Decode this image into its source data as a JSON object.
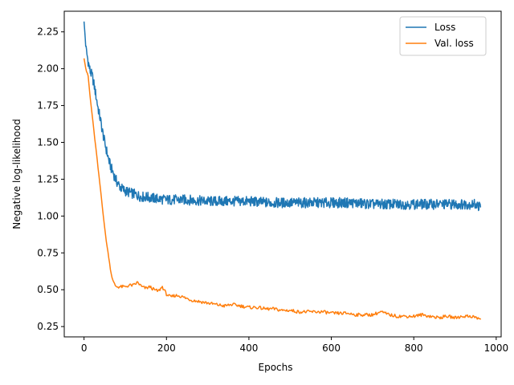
{
  "chart_data": {
    "type": "line",
    "title": "",
    "xlabel": "Epochs",
    "ylabel": "Negative log-likelihood",
    "xlim": [
      -48,
      1012
    ],
    "ylim": [
      0.18,
      2.39
    ],
    "xticks": [
      0,
      200,
      400,
      600,
      800,
      1000
    ],
    "xtick_labels": [
      "0",
      "200",
      "400",
      "600",
      "800",
      "1000"
    ],
    "yticks": [
      0.25,
      0.5,
      0.75,
      1.0,
      1.25,
      1.5,
      1.75,
      2.0,
      2.25
    ],
    "ytick_labels": [
      "0.25",
      "0.50",
      "0.75",
      "1.00",
      "1.25",
      "1.50",
      "1.75",
      "2.00",
      "2.25"
    ],
    "grid": false,
    "legend": {
      "position": "top-right"
    },
    "series": [
      {
        "name": "Loss",
        "color": "#1f77b4",
        "x": [
          0,
          5,
          10,
          15,
          20,
          25,
          30,
          35,
          40,
          45,
          50,
          55,
          60,
          65,
          70,
          75,
          80,
          85,
          90,
          95,
          100,
          110,
          120,
          130,
          140,
          150,
          170,
          200,
          250,
          300,
          350,
          400,
          450,
          500,
          550,
          600,
          650,
          700,
          750,
          800,
          850,
          900,
          950,
          963
        ],
        "values": [
          2.32,
          2.13,
          2.05,
          1.98,
          1.95,
          1.88,
          1.8,
          1.72,
          1.65,
          1.57,
          1.5,
          1.44,
          1.38,
          1.33,
          1.3,
          1.26,
          1.23,
          1.21,
          1.19,
          1.18,
          1.17,
          1.16,
          1.15,
          1.14,
          1.13,
          1.13,
          1.12,
          1.11,
          1.11,
          1.1,
          1.1,
          1.1,
          1.09,
          1.09,
          1.09,
          1.09,
          1.09,
          1.08,
          1.08,
          1.08,
          1.08,
          1.08,
          1.08,
          1.06
        ]
      },
      {
        "name": "Val. loss",
        "color": "#ff7f0e",
        "x": [
          0,
          5,
          10,
          15,
          20,
          25,
          30,
          35,
          40,
          45,
          50,
          55,
          60,
          65,
          70,
          75,
          80,
          90,
          100,
          110,
          120,
          130,
          140,
          150,
          160,
          170,
          180,
          190,
          200,
          210,
          220,
          230,
          240,
          260,
          280,
          300,
          320,
          340,
          360,
          380,
          400,
          420,
          440,
          460,
          480,
          500,
          520,
          540,
          560,
          580,
          600,
          620,
          640,
          660,
          680,
          700,
          720,
          740,
          760,
          780,
          800,
          820,
          840,
          860,
          880,
          900,
          920,
          940,
          963
        ],
        "values": [
          2.07,
          1.99,
          1.95,
          1.8,
          1.68,
          1.55,
          1.43,
          1.3,
          1.18,
          1.05,
          0.92,
          0.81,
          0.72,
          0.62,
          0.56,
          0.53,
          0.52,
          0.52,
          0.52,
          0.53,
          0.53,
          0.55,
          0.52,
          0.51,
          0.52,
          0.5,
          0.49,
          0.52,
          0.47,
          0.45,
          0.46,
          0.46,
          0.45,
          0.43,
          0.42,
          0.41,
          0.4,
          0.39,
          0.4,
          0.39,
          0.38,
          0.38,
          0.37,
          0.37,
          0.36,
          0.36,
          0.35,
          0.35,
          0.35,
          0.35,
          0.34,
          0.34,
          0.34,
          0.33,
          0.33,
          0.33,
          0.35,
          0.33,
          0.32,
          0.32,
          0.32,
          0.33,
          0.32,
          0.31,
          0.32,
          0.31,
          0.32,
          0.32,
          0.3
        ]
      }
    ]
  }
}
